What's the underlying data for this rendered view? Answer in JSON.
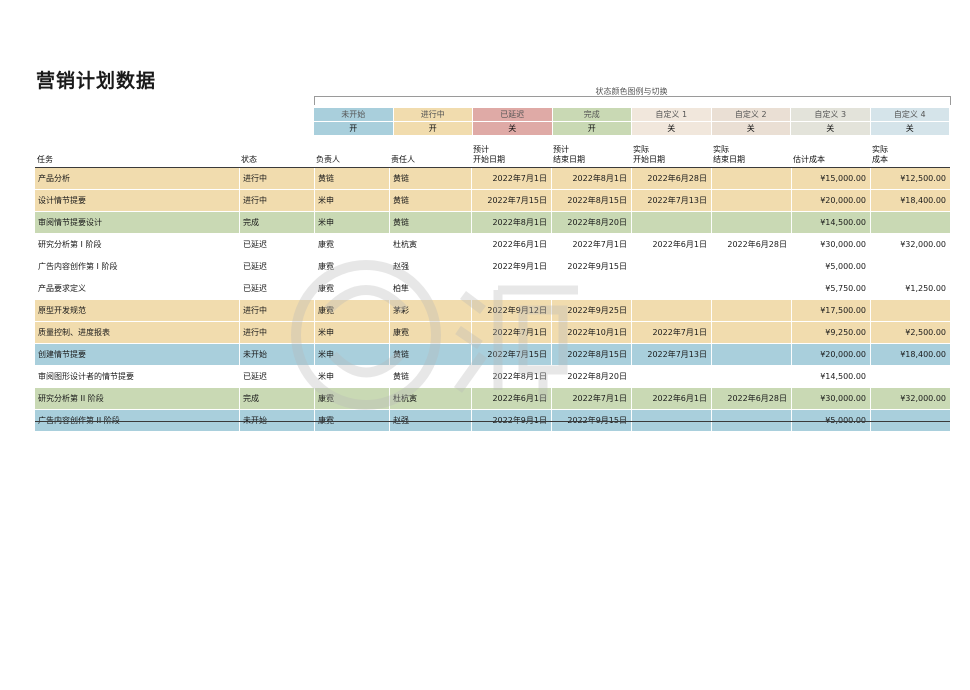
{
  "title": "营销计划数据",
  "legend": {
    "caption": "状态颜色图例与切换",
    "items": [
      {
        "label": "未开始",
        "toggle": "开",
        "color": "#a9cfdc"
      },
      {
        "label": "进行中",
        "toggle": "开",
        "color": "#f1dcae"
      },
      {
        "label": "已延迟",
        "toggle": "关",
        "color": "#dfaaa6"
      },
      {
        "label": "完成",
        "toggle": "开",
        "color": "#c9d9b4"
      },
      {
        "label": "自定义 1",
        "toggle": "关",
        "color": "#f1e7dc"
      },
      {
        "label": "自定义 2",
        "toggle": "关",
        "color": "#eadfd4"
      },
      {
        "label": "自定义 3",
        "toggle": "关",
        "color": "#e3e3da"
      },
      {
        "label": "自定义 4",
        "toggle": "关",
        "color": "#d5e4ea"
      }
    ]
  },
  "headers": [
    {
      "line1": "",
      "line2": "任务"
    },
    {
      "line1": "",
      "line2": "状态"
    },
    {
      "line1": "",
      "line2": "负责人"
    },
    {
      "line1": "",
      "line2": "责任人"
    },
    {
      "line1": "预计",
      "line2": "开始日期"
    },
    {
      "line1": "预计",
      "line2": "结束日期"
    },
    {
      "line1": "实际",
      "line2": "开始日期"
    },
    {
      "line1": "实际",
      "line2": "结束日期"
    },
    {
      "line1": "",
      "line2": "估计成本"
    },
    {
      "line1": "实际",
      "line2": "成本"
    }
  ],
  "rows": [
    {
      "task": "产品分析",
      "status": "进行中",
      "lead": "黄链",
      "owner": "黄链",
      "est_start": "2022年7月1日",
      "est_end": "2022年8月1日",
      "act_start": "2022年6月28日",
      "act_end": "",
      "est_cost": "¥15,000.00",
      "act_cost": "¥12,500.00",
      "color": "#f1dcae"
    },
    {
      "task": "设计情节提要",
      "status": "进行中",
      "lead": "米申",
      "owner": "黄链",
      "est_start": "2022年7月15日",
      "est_end": "2022年8月15日",
      "act_start": "2022年7月13日",
      "act_end": "",
      "est_cost": "¥20,000.00",
      "act_cost": "¥18,400.00",
      "color": "#f1dcae"
    },
    {
      "task": "审阅情节提要设计",
      "status": "完成",
      "lead": "米申",
      "owner": "黄链",
      "est_start": "2022年8月1日",
      "est_end": "2022年8月20日",
      "act_start": "",
      "act_end": "",
      "est_cost": "¥14,500.00",
      "act_cost": "",
      "color": "#c9d9b4"
    },
    {
      "task": "研究分析第 I 阶段",
      "status": "已延迟",
      "lead": "康霓",
      "owner": "杜杭寅",
      "est_start": "2022年6月1日",
      "est_end": "2022年7月1日",
      "act_start": "2022年6月1日",
      "act_end": "2022年6月28日",
      "est_cost": "¥30,000.00",
      "act_cost": "¥32,000.00",
      "color": "#ffffff"
    },
    {
      "task": "广告内容创作第 I 阶段",
      "status": "已延迟",
      "lead": "康霓",
      "owner": "赵强",
      "est_start": "2022年9月1日",
      "est_end": "2022年9月15日",
      "act_start": "",
      "act_end": "",
      "est_cost": "¥5,000.00",
      "act_cost": "",
      "color": "#ffffff"
    },
    {
      "task": "产品要求定义",
      "status": "已延迟",
      "lead": "康霓",
      "owner": "柏隼",
      "est_start": "",
      "est_end": "",
      "act_start": "",
      "act_end": "",
      "est_cost": "¥5,750.00",
      "act_cost": "¥1,250.00",
      "color": "#ffffff"
    },
    {
      "task": "原型开发规范",
      "status": "进行中",
      "lead": "康霓",
      "owner": "茅彩",
      "est_start": "2022年9月12日",
      "est_end": "2022年9月25日",
      "act_start": "",
      "act_end": "",
      "est_cost": "¥17,500.00",
      "act_cost": "",
      "color": "#f1dcae"
    },
    {
      "task": "质量控制、进度报表",
      "status": "进行中",
      "lead": "米申",
      "owner": "康霓",
      "est_start": "2022年7月1日",
      "est_end": "2022年10月1日",
      "act_start": "2022年7月1日",
      "act_end": "",
      "est_cost": "¥9,250.00",
      "act_cost": "¥2,500.00",
      "color": "#f1dcae"
    },
    {
      "task": "创建情节提要",
      "status": "未开始",
      "lead": "米申",
      "owner": "黄链",
      "est_start": "2022年7月15日",
      "est_end": "2022年8月15日",
      "act_start": "2022年7月13日",
      "act_end": "",
      "est_cost": "¥20,000.00",
      "act_cost": "¥18,400.00",
      "color": "#a9cfdc"
    },
    {
      "task": "审阅图形设计者的情节提要",
      "status": "已延迟",
      "lead": "米申",
      "owner": "黄链",
      "est_start": "2022年8月1日",
      "est_end": "2022年8月20日",
      "act_start": "",
      "act_end": "",
      "est_cost": "¥14,500.00",
      "act_cost": "",
      "color": "#ffffff"
    },
    {
      "task": "研究分析第 II 阶段",
      "status": "完成",
      "lead": "康霓",
      "owner": "杜杭寅",
      "est_start": "2022年6月1日",
      "est_end": "2022年7月1日",
      "act_start": "2022年6月1日",
      "act_end": "2022年6月28日",
      "est_cost": "¥30,000.00",
      "act_cost": "¥32,000.00",
      "color": "#c9d9b4"
    },
    {
      "task": "广告内容创作第 II 阶段",
      "status": "未开始",
      "lead": "康霓",
      "owner": "赵强",
      "est_start": "2022年9月1日",
      "est_end": "2022年9月15日",
      "act_start": "",
      "act_end": "",
      "est_cost": "¥5,000.00",
      "act_cost": "",
      "color": "#a9cfdc"
    }
  ]
}
